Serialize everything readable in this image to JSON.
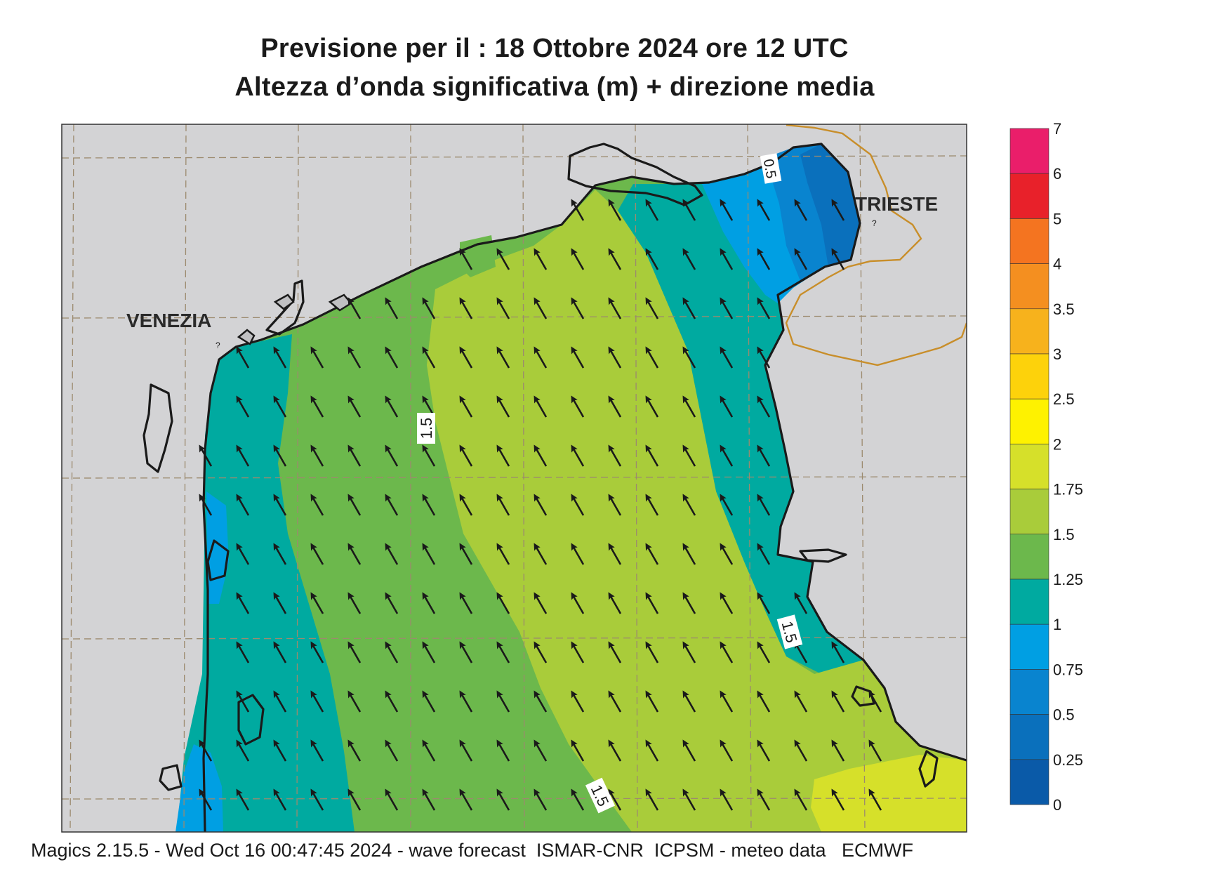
{
  "title": {
    "line1": "Previsione per il  :  18  Ottobre  2024   ore 12 UTC",
    "line2": "Altezza d’onda significativa (m) + direzione media"
  },
  "places": {
    "venezia": "VENEZIA",
    "trieste": "TRIESTE"
  },
  "contour_labels": [
    "1.5",
    "1.5",
    "1.5",
    "0.5"
  ],
  "legend": {
    "ticks": [
      "7",
      "6",
      "5",
      "4",
      "3.5",
      "3",
      "2.5",
      "2",
      "1.75",
      "1.5",
      "1.25",
      "1",
      "0.75",
      "0.5",
      "0.25",
      "0"
    ],
    "colors": [
      "#ea1e6a",
      "#e8212a",
      "#f47420",
      "#f48f20",
      "#f7b21c",
      "#fdd20b",
      "#fef200",
      "#d6e02a",
      "#a9cc3a",
      "#6cb84c",
      "#00aaa0",
      "#009fe3",
      "#0984cf",
      "#0a70bc",
      "#0a5aa8"
    ]
  },
  "colors": {
    "land": "#d3d3d5",
    "coast": "#1a1a1a",
    "grid": "#9c8a6e",
    "border": "#c88e2a",
    "arrow": "#1a1a1a"
  },
  "map_data": {
    "variable": "significant wave height (m)",
    "prevailing_direction": "NNW",
    "range_m": [
      0.25,
      2
    ]
  },
  "footer": "Magics 2.15.5 - Wed Oct 16 00:47:45 2024 - wave forecast  ISMAR-CNR  ICPSM - meteo data   ECMWF"
}
